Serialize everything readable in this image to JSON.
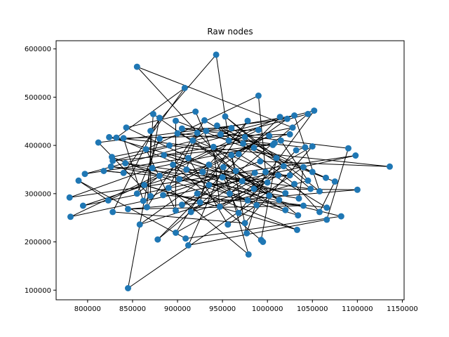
{
  "chart_data": {
    "type": "scatter",
    "title": "Raw nodes",
    "xlabel": "",
    "ylabel": "",
    "xlim": [
      765000,
      1152000
    ],
    "ylim": [
      80000,
      617000
    ],
    "xticks": [
      800000,
      850000,
      900000,
      950000,
      1000000,
      1050000,
      1100000,
      1150000
    ],
    "xtick_labels": [
      "800000",
      "850000",
      "900000",
      "950000",
      "1000000",
      "1050000",
      "1100000",
      "1150000"
    ],
    "yticks": [
      100000,
      200000,
      300000,
      400000,
      500000,
      600000
    ],
    "ytick_labels": [
      "100000",
      "200000",
      "300000",
      "400000",
      "500000",
      "600000"
    ],
    "grid": false,
    "legend": "none",
    "marker_color": "#1f77b4",
    "line_color": "#000000",
    "points": [
      [
        943000,
        588000
      ],
      [
        855000,
        563000
      ],
      [
        990000,
        503000
      ],
      [
        908000,
        519000
      ],
      [
        1052000,
        472000
      ],
      [
        920000,
        470000
      ],
      [
        873000,
        465000
      ],
      [
        953000,
        460000
      ],
      [
        1014000,
        459000
      ],
      [
        1030000,
        462000
      ],
      [
        1045000,
        465000
      ],
      [
        880000,
        457000
      ],
      [
        930000,
        452000
      ],
      [
        978000,
        451000
      ],
      [
        898000,
        451000
      ],
      [
        1022000,
        455000
      ],
      [
        843000,
        437000
      ],
      [
        905000,
        435000
      ],
      [
        960000,
        436000
      ],
      [
        990000,
        432000
      ],
      [
        1028000,
        437000
      ],
      [
        870000,
        430000
      ],
      [
        922000,
        426000
      ],
      [
        948000,
        423000
      ],
      [
        1002000,
        420000
      ],
      [
        1025000,
        423000
      ],
      [
        880000,
        414000
      ],
      [
        832000,
        416000
      ],
      [
        824000,
        417000
      ],
      [
        840000,
        415000
      ],
      [
        812000,
        406000
      ],
      [
        1006000,
        401000
      ],
      [
        1042000,
        396000
      ],
      [
        1050000,
        398000
      ],
      [
        1090000,
        394000
      ],
      [
        1098000,
        379000
      ],
      [
        1136000,
        356000
      ],
      [
        1100000,
        308000
      ],
      [
        1082000,
        253000
      ],
      [
        1066000,
        246000
      ],
      [
        1066000,
        271000
      ],
      [
        1040000,
        275000
      ],
      [
        1058000,
        262000
      ],
      [
        1034000,
        255000
      ],
      [
        1020000,
        266000
      ],
      [
        1033000,
        225000
      ],
      [
        995000,
        200000
      ],
      [
        993000,
        204000
      ],
      [
        979000,
        174000
      ],
      [
        977000,
        218000
      ],
      [
        975000,
        239000
      ],
      [
        956000,
        236000
      ],
      [
        912000,
        193000
      ],
      [
        909000,
        207000
      ],
      [
        878000,
        205000
      ],
      [
        898000,
        219000
      ],
      [
        845000,
        104000
      ],
      [
        858000,
        236000
      ],
      [
        845000,
        268000
      ],
      [
        828000,
        262000
      ],
      [
        823000,
        286000
      ],
      [
        780000,
        292000
      ],
      [
        781000,
        252000
      ],
      [
        795000,
        275000
      ],
      [
        790000,
        327000
      ],
      [
        797000,
        341000
      ],
      [
        818000,
        347000
      ],
      [
        826000,
        356000
      ],
      [
        828000,
        368000
      ],
      [
        827000,
        376000
      ],
      [
        840000,
        343000
      ],
      [
        842000,
        363000
      ],
      [
        855000,
        300000
      ],
      [
        862000,
        285000
      ],
      [
        866000,
        272000
      ],
      [
        870000,
        295000
      ],
      [
        890000,
        312000
      ],
      [
        905000,
        277000
      ],
      [
        915000,
        262000
      ],
      [
        922000,
        300000
      ],
      [
        935000,
        318000
      ],
      [
        950000,
        334000
      ],
      [
        965000,
        347000
      ],
      [
        972000,
        326000
      ],
      [
        985000,
        310000
      ],
      [
        1000000,
        323000
      ],
      [
        1012000,
        338000
      ],
      [
        1030000,
        320000
      ],
      [
        1045000,
        327000
      ],
      [
        1058000,
        305000
      ],
      [
        1065000,
        333000
      ],
      [
        1075000,
        325000
      ],
      [
        1050000,
        345000
      ],
      [
        1018000,
        357000
      ],
      [
        992000,
        367000
      ],
      [
        968000,
        382000
      ],
      [
        940000,
        397000
      ],
      [
        912000,
        374000
      ],
      [
        895000,
        360000
      ],
      [
        880000,
        337000
      ],
      [
        872000,
        353000
      ],
      [
        902000,
        330000
      ],
      [
        928000,
        345000
      ],
      [
        958000,
        300000
      ],
      [
        978000,
        286000
      ],
      [
        1002000,
        296000
      ],
      [
        1020000,
        301000
      ],
      [
        1035000,
        290000
      ],
      [
        947000,
        273000
      ],
      [
        925000,
        282000
      ],
      [
        898000,
        265000
      ],
      [
        884000,
        297000
      ],
      [
        863000,
        318000
      ],
      [
        957000,
        410000
      ],
      [
        973000,
        404000
      ],
      [
        1008000,
        405000
      ],
      [
        1032000,
        390000
      ],
      [
        985000,
        395000
      ],
      [
        917000,
        410000
      ],
      [
        891000,
        400000
      ],
      [
        865000,
        392000
      ],
      [
        1015000,
        410000
      ],
      [
        1040000,
        355000
      ],
      [
        968000,
        260000
      ],
      [
        988000,
        276000
      ],
      [
        1013000,
        287000
      ],
      [
        935000,
        360000
      ],
      [
        951000,
        355000
      ],
      [
        910000,
        350000
      ],
      [
        885000,
        380000
      ],
      [
        960000,
        380000
      ],
      [
        998000,
        345000
      ],
      [
        1025000,
        338000
      ],
      [
        1048000,
        310000
      ],
      [
        1010000,
        374000
      ],
      [
        975000,
        417000
      ],
      [
        944000,
        441000
      ],
      [
        932000,
        430000
      ],
      [
        900000,
        425000
      ],
      [
        986000,
        343000
      ]
    ]
  }
}
